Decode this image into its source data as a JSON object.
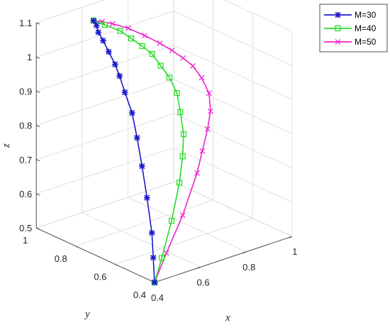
{
  "chart_data": {
    "type": "line3d",
    "title": "",
    "xlabel": "x",
    "ylabel": "y",
    "zlabel": "z",
    "xlim": [
      0.4,
      1.0
    ],
    "ylim": [
      0.4,
      1.0
    ],
    "zlim": [
      0.5,
      1.1
    ],
    "xticks": [
      "0.4",
      "0.6",
      "0.8",
      "1"
    ],
    "yticks": [
      "0.4",
      "0.6",
      "0.8",
      "1"
    ],
    "zticks": [
      "0.5",
      "0.6",
      "0.7",
      "0.8",
      "0.9",
      "1",
      "1.1"
    ],
    "grid": true,
    "legend_position": "top-right",
    "series": [
      {
        "name": "M=30",
        "color": "#1a1acc",
        "marker": "asterisk",
        "points": [
          [
            0.4,
            0.4,
            0.5
          ],
          [
            0.42,
            0.43,
            0.56
          ],
          [
            0.44,
            0.46,
            0.62
          ],
          [
            0.47,
            0.52,
            0.7
          ],
          [
            0.5,
            0.58,
            0.77
          ],
          [
            0.53,
            0.64,
            0.83
          ],
          [
            0.56,
            0.7,
            0.88
          ],
          [
            0.58,
            0.76,
            0.92
          ],
          [
            0.6,
            0.81,
            0.95
          ],
          [
            0.615,
            0.85,
            0.97
          ],
          [
            0.63,
            0.9,
            0.99
          ],
          [
            0.64,
            0.94,
            1.01
          ],
          [
            0.645,
            0.97,
            1.025
          ],
          [
            0.65,
            0.985,
            1.04
          ],
          [
            0.65,
            1.0,
            1.05
          ]
        ]
      },
      {
        "name": "M=40",
        "color": "#22dd22",
        "marker": "square",
        "points": [
          [
            0.4,
            0.4,
            0.5
          ],
          [
            0.44,
            0.41,
            0.56
          ],
          [
            0.5,
            0.43,
            0.65
          ],
          [
            0.56,
            0.46,
            0.74
          ],
          [
            0.6,
            0.49,
            0.8
          ],
          [
            0.63,
            0.52,
            0.85
          ],
          [
            0.65,
            0.56,
            0.9
          ],
          [
            0.67,
            0.6,
            0.94
          ],
          [
            0.68,
            0.65,
            0.97
          ],
          [
            0.685,
            0.7,
            0.99
          ],
          [
            0.69,
            0.75,
            1.01
          ],
          [
            0.69,
            0.8,
            1.02
          ],
          [
            0.685,
            0.85,
            1.03
          ],
          [
            0.68,
            0.9,
            1.04
          ],
          [
            0.665,
            0.96,
            1.045
          ],
          [
            0.65,
            1.0,
            1.05
          ]
        ]
      },
      {
        "name": "M=50",
        "color": "#ee22cc",
        "marker": "x",
        "points": [
          [
            0.4,
            0.4,
            0.5
          ],
          [
            0.46,
            0.41,
            0.57
          ],
          [
            0.54,
            0.42,
            0.66
          ],
          [
            0.62,
            0.44,
            0.76
          ],
          [
            0.66,
            0.46,
            0.81
          ],
          [
            0.7,
            0.48,
            0.86
          ],
          [
            0.73,
            0.5,
            0.9
          ],
          [
            0.75,
            0.53,
            0.94
          ],
          [
            0.76,
            0.58,
            0.97
          ],
          [
            0.765,
            0.63,
            0.99
          ],
          [
            0.765,
            0.68,
            1.0
          ],
          [
            0.76,
            0.73,
            1.01
          ],
          [
            0.75,
            0.78,
            1.02
          ],
          [
            0.735,
            0.84,
            1.03
          ],
          [
            0.715,
            0.9,
            1.04
          ],
          [
            0.69,
            0.95,
            1.045
          ],
          [
            0.67,
            0.98,
            1.048
          ],
          [
            0.65,
            1.0,
            1.05
          ]
        ]
      }
    ]
  }
}
